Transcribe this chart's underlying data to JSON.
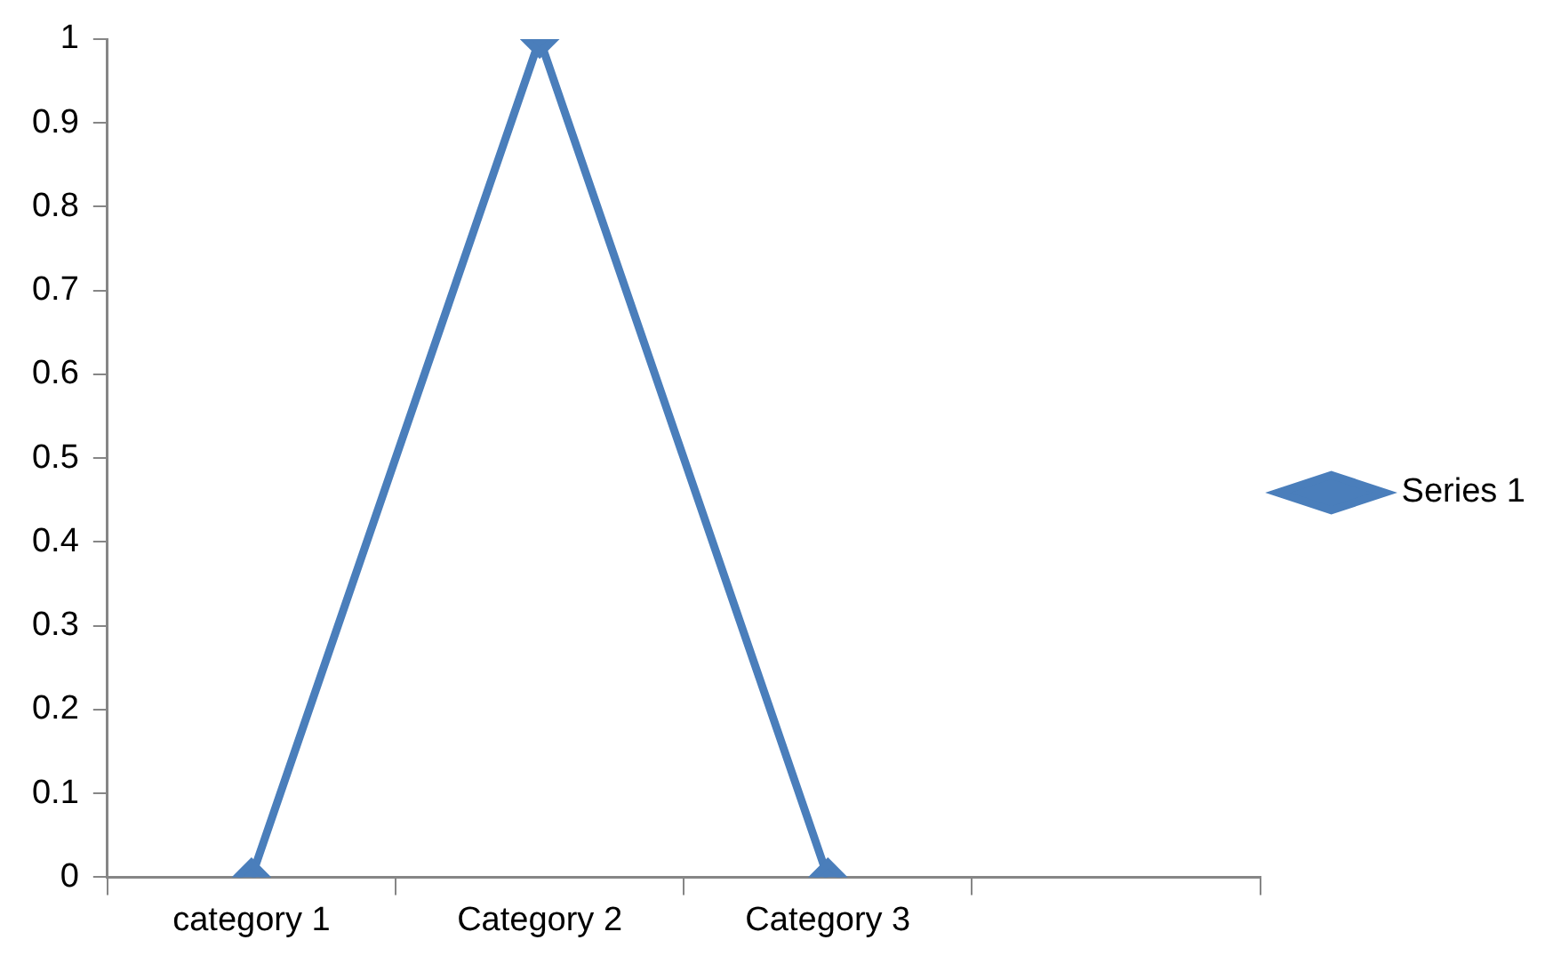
{
  "chart_data": {
    "type": "line",
    "categories": [
      "category 1",
      "Category 2",
      "Category 3",
      null
    ],
    "series": [
      {
        "name": "Series 1",
        "color": "#4a7ebb",
        "values": [
          0,
          1,
          0,
          null
        ]
      }
    ],
    "ylim": [
      0,
      1
    ],
    "yticks": [
      0,
      0.1,
      0.2,
      0.3,
      0.4,
      0.5,
      0.6,
      0.7,
      0.8,
      0.9,
      1
    ],
    "grid": false,
    "legend": "right",
    "marker": "diamond",
    "line_style": "solid"
  }
}
